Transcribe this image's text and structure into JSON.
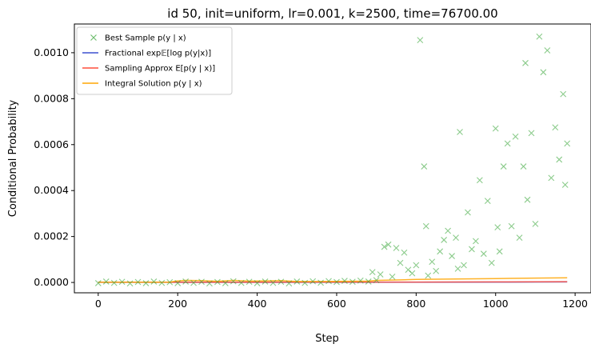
{
  "chart_data": {
    "type": "line",
    "title": "id 50, init=uniform, lr=0.001, k=2500, time=76700.00",
    "xlabel": "Step",
    "ylabel": "Conditional Probability",
    "xlim": [
      -60,
      1240
    ],
    "ylim": [
      -4.5e-05,
      0.001125
    ],
    "x_ticks": [
      0,
      200,
      400,
      600,
      800,
      1000,
      1200
    ],
    "y_ticks": [
      0.0,
      0.0002,
      0.0004,
      0.0006,
      0.0008,
      0.001
    ],
    "y_tick_labels": [
      "0.0000",
      "0.0002",
      "0.0004",
      "0.0006",
      "0.0008",
      "0.0010"
    ],
    "grid": false,
    "legend_position": "top-left",
    "series": [
      {
        "name": "Best Sample p(y | x)",
        "kind": "scatter",
        "marker": "x",
        "color": "#2ca02c",
        "points": [
          [
            0,
            -3e-06
          ],
          [
            20,
            4e-06
          ],
          [
            40,
            -2e-06
          ],
          [
            60,
            3e-06
          ],
          [
            80,
            -4e-06
          ],
          [
            100,
            2e-06
          ],
          [
            120,
            -3e-06
          ],
          [
            140,
            4e-06
          ],
          [
            160,
            -2e-06
          ],
          [
            180,
            1e-06
          ],
          [
            200,
            -3e-06
          ],
          [
            220,
            4e-06
          ],
          [
            240,
            -2e-06
          ],
          [
            260,
            3e-06
          ],
          [
            280,
            -4e-06
          ],
          [
            300,
            2e-06
          ],
          [
            320,
            -3e-06
          ],
          [
            340,
            5e-06
          ],
          [
            360,
            -2e-06
          ],
          [
            380,
            3e-06
          ],
          [
            400,
            -3e-06
          ],
          [
            420,
            4e-06
          ],
          [
            440,
            -2e-06
          ],
          [
            460,
            3e-06
          ],
          [
            480,
            -4e-06
          ],
          [
            500,
            4e-06
          ],
          [
            520,
            -2e-06
          ],
          [
            540,
            5e-06
          ],
          [
            560,
            -1e-06
          ],
          [
            580,
            6e-06
          ],
          [
            600,
            2e-06
          ],
          [
            620,
            7e-06
          ],
          [
            640,
            3e-06
          ],
          [
            660,
            8e-06
          ],
          [
            680,
            4e-06
          ],
          [
            690,
            4.5e-05
          ],
          [
            700,
            1e-05
          ],
          [
            710,
            3.5e-05
          ],
          [
            720,
            0.000155
          ],
          [
            730,
            0.000165
          ],
          [
            740,
            2.5e-05
          ],
          [
            750,
            0.00015
          ],
          [
            760,
            8.5e-05
          ],
          [
            770,
            0.00013
          ],
          [
            780,
            5.5e-05
          ],
          [
            790,
            4e-05
          ],
          [
            800,
            7.5e-05
          ],
          [
            810,
            0.001055
          ],
          [
            820,
            0.000505
          ],
          [
            825,
            0.000245
          ],
          [
            830,
            3e-05
          ],
          [
            840,
            9e-05
          ],
          [
            850,
            5e-05
          ],
          [
            860,
            0.000135
          ],
          [
            870,
            0.000185
          ],
          [
            880,
            0.000225
          ],
          [
            890,
            0.000115
          ],
          [
            900,
            0.000195
          ],
          [
            905,
            6e-05
          ],
          [
            910,
            0.000655
          ],
          [
            920,
            7.5e-05
          ],
          [
            930,
            0.000305
          ],
          [
            940,
            0.000145
          ],
          [
            950,
            0.00018
          ],
          [
            960,
            0.000445
          ],
          [
            970,
            0.000125
          ],
          [
            980,
            0.000355
          ],
          [
            990,
            8.5e-05
          ],
          [
            1000,
            0.00067
          ],
          [
            1005,
            0.00024
          ],
          [
            1010,
            0.000135
          ],
          [
            1020,
            0.000505
          ],
          [
            1030,
            0.000605
          ],
          [
            1040,
            0.000245
          ],
          [
            1050,
            0.000635
          ],
          [
            1060,
            0.000195
          ],
          [
            1070,
            0.000505
          ],
          [
            1075,
            0.000955
          ],
          [
            1080,
            0.00036
          ],
          [
            1090,
            0.00065
          ],
          [
            1100,
            0.000255
          ],
          [
            1110,
            0.00107
          ],
          [
            1120,
            0.000915
          ],
          [
            1130,
            0.00101
          ],
          [
            1140,
            0.000455
          ],
          [
            1150,
            0.000675
          ],
          [
            1160,
            0.000535
          ],
          [
            1170,
            0.00082
          ],
          [
            1175,
            0.000425
          ],
          [
            1180,
            0.000605
          ]
        ]
      },
      {
        "name": "Fractional exp E[log p(y|x)]",
        "kind": "line",
        "color": "#3b4fd0",
        "points": [
          [
            0,
            5e-07
          ],
          [
            400,
            7e-07
          ],
          [
            800,
            1.2e-06
          ],
          [
            1000,
            1.8e-06
          ],
          [
            1180,
            2.5e-06
          ]
        ]
      },
      {
        "name": "Sampling Approx E[p(y | x)]",
        "kind": "line",
        "color": "#ff4b3a",
        "points": [
          [
            0,
            1e-06
          ],
          [
            400,
            1.2e-06
          ],
          [
            800,
            1.8e-06
          ],
          [
            1000,
            2.5e-06
          ],
          [
            1180,
            3.5e-06
          ]
        ]
      },
      {
        "name": "Integral Solution p(y | x)",
        "kind": "line",
        "color": "#ffa500",
        "points": [
          [
            0,
            1e-06
          ],
          [
            180,
            1e-06
          ],
          [
            195,
            6e-06
          ],
          [
            220,
            9e-06
          ],
          [
            260,
            8e-06
          ],
          [
            300,
            5e-06
          ],
          [
            340,
            9e-06
          ],
          [
            380,
            6e-06
          ],
          [
            420,
            7e-06
          ],
          [
            460,
            8e-06
          ],
          [
            500,
            4e-06
          ],
          [
            560,
            4e-06
          ],
          [
            620,
            5e-06
          ],
          [
            680,
            6e-06
          ],
          [
            700,
            9e-06
          ],
          [
            760,
            1.1e-05
          ],
          [
            800,
            1.3e-05
          ],
          [
            900,
            1.5e-05
          ],
          [
            1000,
            1.7e-05
          ],
          [
            1100,
            1.9e-05
          ],
          [
            1180,
            2e-05
          ]
        ]
      }
    ]
  },
  "legend": {
    "items": [
      {
        "label": "Best Sample p(y | x)",
        "color": "#2ca02c",
        "marker": "x"
      },
      {
        "label": "Fractional exp𝔼[log p(y|x)]",
        "color": "#3b4fd0",
        "marker": "line"
      },
      {
        "label": "Sampling Approx E[p(y | x)]",
        "color": "#ff4b3a",
        "marker": "line"
      },
      {
        "label": "Integral Solution p(y | x)",
        "color": "#ffa500",
        "marker": "line"
      }
    ]
  }
}
